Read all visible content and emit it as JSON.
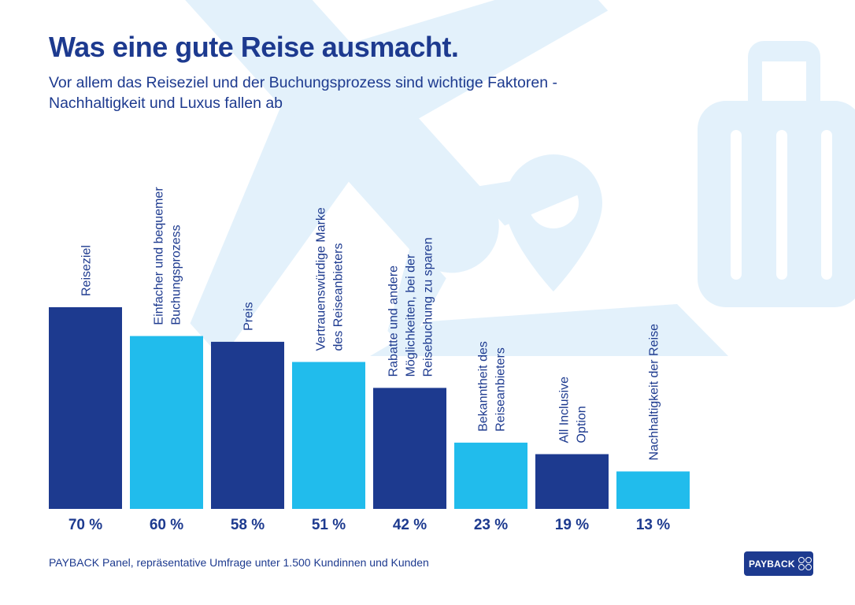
{
  "colors": {
    "dark": "#1d3a8f",
    "light": "#21bcec",
    "background_art": "#e3f1fb"
  },
  "header": {
    "title": "Was eine gute Reise ausmacht.",
    "subtitle": "Vor allem das Reiseziel und der Buchungsprozess sind wichtige Faktoren - Nachhaltigkeit und Luxus fallen ab"
  },
  "footer": {
    "source": "PAYBACK Panel, repräsentative Umfrage unter 1.500 Kundinnen und Kunden",
    "brand": "PAYBACK"
  },
  "chart_data": {
    "type": "bar",
    "title": "Was eine gute Reise ausmacht.",
    "xlabel": "",
    "ylabel": "",
    "ylim": [
      0,
      70
    ],
    "grid": false,
    "unit": "%",
    "categories": [
      [
        "Reiseziel"
      ],
      [
        "Einfacher und bequemer",
        "Buchungsprozess"
      ],
      [
        "Preis"
      ],
      [
        "Vertrauenswürdige Marke",
        "des Reiseanbieters"
      ],
      [
        "Rabatte und andere",
        "Möglichkeiten, bei der",
        "Reisebuchung zu sparen"
      ],
      [
        "Bekanntheit des",
        "Reiseanbieters"
      ],
      [
        "All Inclusive",
        "Option"
      ],
      [
        "Nachhaltigkeit der Reise"
      ]
    ],
    "values": [
      70,
      60,
      58,
      51,
      42,
      23,
      19,
      13
    ],
    "value_labels": [
      "70 %",
      "60 %",
      "58 %",
      "51 %",
      "42 %",
      "23 %",
      "19 %",
      "13 %"
    ],
    "bar_colors": [
      "dark",
      "light",
      "dark",
      "light",
      "dark",
      "light",
      "dark",
      "light"
    ]
  }
}
